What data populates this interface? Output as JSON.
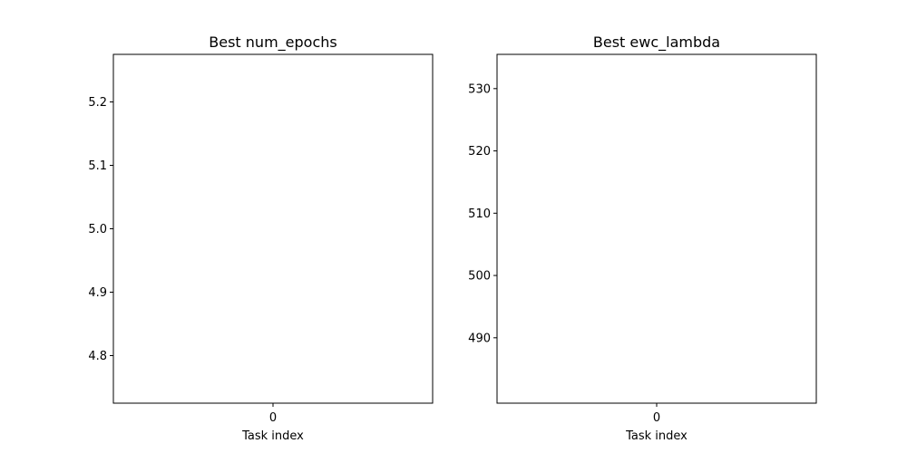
{
  "chart_data": [
    {
      "type": "scatter",
      "title": "Best num_epochs",
      "xlabel": "Task index",
      "ylabel": "",
      "x_ticks": [
        "0"
      ],
      "xlim": [
        -0.055,
        0.055
      ],
      "ylim": [
        4.725,
        5.275
      ],
      "y_ticks": [
        4.8,
        4.9,
        5.0,
        5.1,
        5.2
      ],
      "y_tick_labels": [
        "4.8",
        "4.9",
        "5.0",
        "5.1",
        "5.2"
      ],
      "grid": false,
      "series": []
    },
    {
      "type": "scatter",
      "title": "Best ewc_lambda",
      "xlabel": "Task index",
      "ylabel": "",
      "x_ticks": [
        "0"
      ],
      "xlim": [
        -0.055,
        0.055
      ],
      "ylim": [
        479.5,
        535.5
      ],
      "y_ticks": [
        490,
        500,
        510,
        520,
        530
      ],
      "y_tick_labels": [
        "490",
        "500",
        "510",
        "520",
        "530"
      ],
      "grid": false,
      "series": []
    }
  ]
}
